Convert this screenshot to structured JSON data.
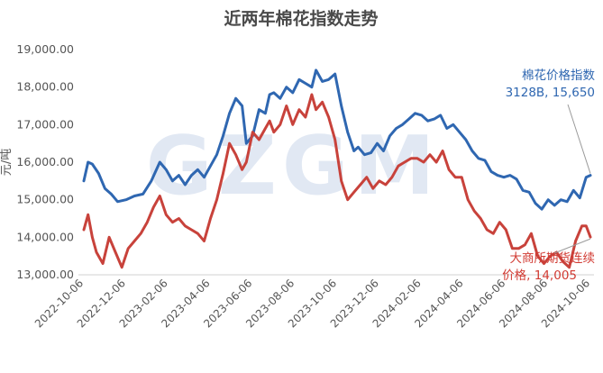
{
  "chart_data": {
    "type": "line",
    "title": "近两年棉花指数走势",
    "ylabel": "元/吨",
    "watermark": "GZGM",
    "ylim": [
      13000,
      19000
    ],
    "yticks": [
      "19,000.00",
      "18,000.00",
      "17,000.00",
      "16,000.00",
      "15,000.00",
      "14,000.00",
      "13,000.00"
    ],
    "yticks_values": [
      19000,
      18000,
      17000,
      16000,
      15000,
      14000,
      13000
    ],
    "xticks": [
      "2022-10-06",
      "2022-12-06",
      "2023-02-06",
      "2023-04-06",
      "2023-06-06",
      "2023-08-06",
      "2023-10-06",
      "2023-12-06",
      "2024-02-06",
      "2024-04-06",
      "2024-06-06",
      "2024-08-06",
      "2024-10-06"
    ],
    "x_range_months": [
      0,
      24
    ],
    "series": [
      {
        "name": "棉花价格指数",
        "color": "#2f67b1",
        "x": [
          0,
          0.2,
          0.4,
          0.7,
          1,
          1.3,
          1.6,
          2,
          2.4,
          2.8,
          3.2,
          3.6,
          3.9,
          4.2,
          4.5,
          4.8,
          5.1,
          5.4,
          5.7,
          6,
          6.3,
          6.6,
          6.9,
          7.2,
          7.5,
          7.7,
          8,
          8.3,
          8.6,
          8.8,
          9,
          9.3,
          9.6,
          9.9,
          10.2,
          10.5,
          10.8,
          11,
          11.3,
          11.6,
          11.9,
          12.2,
          12.5,
          12.8,
          13,
          13.3,
          13.6,
          13.9,
          14.2,
          14.5,
          14.8,
          15.1,
          15.4,
          15.7,
          16,
          16.3,
          16.6,
          16.9,
          17.2,
          17.5,
          17.8,
          18.1,
          18.4,
          18.7,
          19,
          19.3,
          19.6,
          19.9,
          20.2,
          20.5,
          20.8,
          21.1,
          21.4,
          21.7,
          22,
          22.3,
          22.6,
          22.9,
          23.2,
          23.5,
          23.8,
          24
        ],
        "y": [
          15500,
          16000,
          15950,
          15700,
          15300,
          15150,
          14950,
          15000,
          15100,
          15150,
          15500,
          16000,
          15800,
          15500,
          15650,
          15400,
          15650,
          15800,
          15600,
          15900,
          16200,
          16700,
          17300,
          17700,
          17500,
          16500,
          16700,
          17400,
          17300,
          17800,
          17850,
          17700,
          18000,
          17850,
          18200,
          18100,
          18000,
          18450,
          18150,
          18200,
          18350,
          17500,
          16800,
          16300,
          16400,
          16200,
          16250,
          16500,
          16300,
          16700,
          16900,
          17000,
          17150,
          17300,
          17250,
          17100,
          17150,
          17250,
          16900,
          17000,
          16800,
          16600,
          16300,
          16100,
          16050,
          15750,
          15650,
          15600,
          15650,
          15550,
          15250,
          15200,
          14900,
          14750,
          15000,
          14850,
          15000,
          14950,
          15250,
          15050,
          15600,
          15650
        ]
      },
      {
        "name": "大商所期货连续价格",
        "color": "#c8423b",
        "x": [
          0,
          0.2,
          0.4,
          0.6,
          0.9,
          1.2,
          1.5,
          1.8,
          2.1,
          2.4,
          2.7,
          3,
          3.3,
          3.6,
          3.9,
          4.2,
          4.5,
          4.8,
          5.1,
          5.4,
          5.7,
          6,
          6.3,
          6.6,
          6.9,
          7.2,
          7.5,
          7.7,
          8,
          8.3,
          8.6,
          8.8,
          9,
          9.3,
          9.6,
          9.9,
          10.2,
          10.5,
          10.8,
          11,
          11.3,
          11.6,
          11.9,
          12.2,
          12.5,
          12.8,
          13.1,
          13.4,
          13.7,
          14,
          14.3,
          14.6,
          14.9,
          15.2,
          15.5,
          15.8,
          16.1,
          16.4,
          16.7,
          17,
          17.3,
          17.6,
          17.9,
          18.2,
          18.5,
          18.8,
          19.1,
          19.4,
          19.7,
          20,
          20.3,
          20.6,
          20.9,
          21.2,
          21.5,
          21.8,
          22.1,
          22.4,
          22.7,
          23,
          23.3,
          23.6,
          23.8,
          24
        ],
        "y": [
          14200,
          14600,
          14000,
          13600,
          13300,
          14000,
          13600,
          13200,
          13700,
          13900,
          14100,
          14400,
          14800,
          15100,
          14600,
          14400,
          14500,
          14300,
          14200,
          14100,
          13900,
          14500,
          15000,
          15700,
          16500,
          16200,
          15800,
          16000,
          16800,
          16600,
          16900,
          17100,
          16800,
          17000,
          17500,
          17000,
          17400,
          17200,
          17800,
          17400,
          17600,
          17200,
          16600,
          15500,
          15000,
          15200,
          15400,
          15600,
          15300,
          15500,
          15400,
          15600,
          15900,
          16000,
          16100,
          16100,
          16000,
          16200,
          16000,
          16300,
          15800,
          15600,
          15600,
          15000,
          14700,
          14500,
          14200,
          14100,
          14400,
          14200,
          13700,
          13700,
          13800,
          14100,
          13500,
          13300,
          13500,
          13600,
          13350,
          13200,
          13900,
          14300,
          14300,
          14005
        ]
      }
    ],
    "annotations": [
      {
        "series": 0,
        "lines": [
          "棉花价格指数",
          "3128B, 15,650"
        ]
      },
      {
        "series": 1,
        "lines": [
          "大商所期货连续",
          "价格, 14,005"
        ]
      }
    ],
    "grid": false,
    "legend": "none"
  }
}
